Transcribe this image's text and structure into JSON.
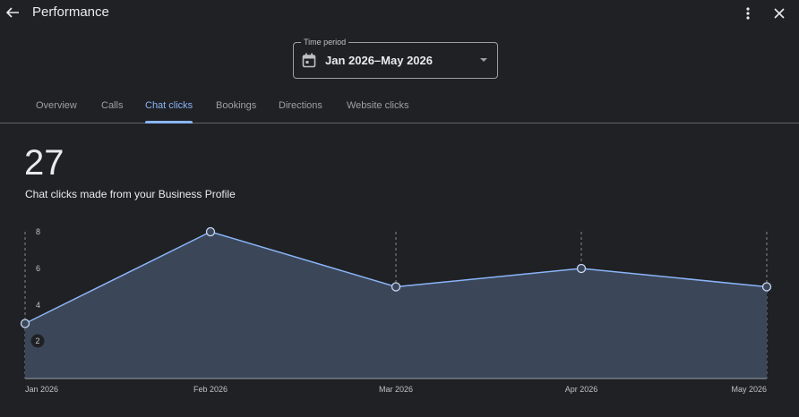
{
  "header": {
    "title": "Performance",
    "back_icon": "arrow-back-icon",
    "more_icon": "more-vert-icon",
    "close_icon": "close-icon"
  },
  "time_period": {
    "legend": "Time period",
    "value": "Jan 2026–May 2026",
    "icon": "calendar-icon"
  },
  "tabs": [
    {
      "label": "Overview",
      "active": false
    },
    {
      "label": "Calls",
      "active": false
    },
    {
      "label": "Chat clicks",
      "active": true
    },
    {
      "label": "Bookings",
      "active": false
    },
    {
      "label": "Directions",
      "active": false
    },
    {
      "label": "Website clicks",
      "active": false
    }
  ],
  "metric": {
    "value": "27",
    "label": "Chat clicks made from your Business Profile"
  },
  "colors": {
    "background": "#202124",
    "accent": "#8ab4f8",
    "area_fill": "#3b4759"
  },
  "chart_data": {
    "type": "area",
    "x": [
      "Jan 2026",
      "Feb 2026",
      "Mar 2026",
      "Apr 2026",
      "May 2026"
    ],
    "series": [
      {
        "values": [
          3,
          8,
          5,
          6,
          5
        ]
      }
    ],
    "y_ticks": [
      2,
      4,
      6,
      8
    ],
    "ylim": [
      0,
      8
    ],
    "grid": "vertical-dashed"
  }
}
